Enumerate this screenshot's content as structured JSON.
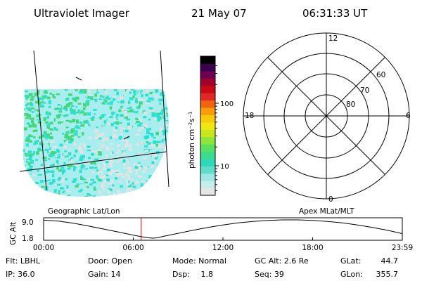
{
  "header": {
    "instrument": "Ultraviolet Imager",
    "date": "21 May 07",
    "time": "06:31:33 UT"
  },
  "image_panel": {
    "caption": "Geographic Lat/Lon"
  },
  "colorbar": {
    "unit_label": "photon cm⁻²s⁻¹",
    "ticks": [
      "100",
      "10"
    ],
    "tick_values": [
      100,
      10
    ],
    "scale": "log",
    "colors": [
      "#e6e6e6",
      "#c8ecec",
      "#9fe6e6",
      "#5fdccc",
      "#2ed8b8",
      "#3cdc8c",
      "#5ae060",
      "#8ee43c",
      "#c8e61e",
      "#f0e614",
      "#f8c80c",
      "#f89c0c",
      "#f06410",
      "#e02828",
      "#c80a14",
      "#a0002c",
      "#6e0050",
      "#3c0050",
      "#000000"
    ],
    "background_colors": {
      "cyan": "#2ee0d0",
      "light_cyan": "#a8eeee",
      "green": "#44d87a",
      "gray": "#e2e4e4"
    }
  },
  "polar_plot": {
    "caption": "Apex MLat/MLT",
    "mlt_labels": [
      "12",
      "18",
      "6",
      "0"
    ],
    "mlat_labels": [
      "60",
      "70",
      "80"
    ]
  },
  "chart_data": {
    "type": "line",
    "title": "",
    "xlabel": "",
    "ylabel": "GC Alt",
    "x_tick_labels": [
      "00:00",
      "06:00",
      "12:00",
      "18:00",
      "23:59"
    ],
    "y_tick_labels": [
      "9.0",
      "1.8"
    ],
    "xlim_hours": [
      0,
      24
    ],
    "ylim": [
      1.8,
      9.0
    ],
    "series": [
      {
        "name": "",
        "x_hours": [
          0.0,
          1.0,
          2.0,
          3.0,
          4.0,
          5.0,
          6.0,
          6.5,
          7.0,
          7.3,
          7.6,
          8.0,
          9.0,
          10.0,
          11.0,
          12.0,
          13.0,
          14.0,
          15.0,
          16.0,
          17.0,
          18.0,
          19.0,
          20.0,
          21.0,
          22.0,
          23.0,
          23.98
        ],
        "y": [
          8.9,
          8.5,
          7.7,
          6.6,
          5.4,
          4.2,
          3.0,
          2.4,
          1.95,
          1.8,
          1.95,
          2.5,
          3.7,
          4.9,
          6.0,
          7.0,
          7.8,
          8.4,
          8.8,
          9.0,
          9.0,
          8.8,
          8.4,
          7.8,
          7.0,
          6.0,
          4.9,
          3.6
        ]
      }
    ],
    "marker": {
      "x_hours": 6.525,
      "color": "#c00000"
    }
  },
  "footer": {
    "flt": "Flt: LBHL",
    "ip": "IP: 36.0",
    "door": "Door: Open",
    "gain": "Gain: 14",
    "mode": "Mode: Normal",
    "dsp_label": "Dsp:",
    "dsp_value": "1.8",
    "gc_alt": "GC Alt: 2.6 Re",
    "seq": "Seq: 39",
    "glat_label": "GLat:",
    "glat_value": "44.7",
    "glon_label": "GLon:",
    "glon_value": "355.7"
  }
}
